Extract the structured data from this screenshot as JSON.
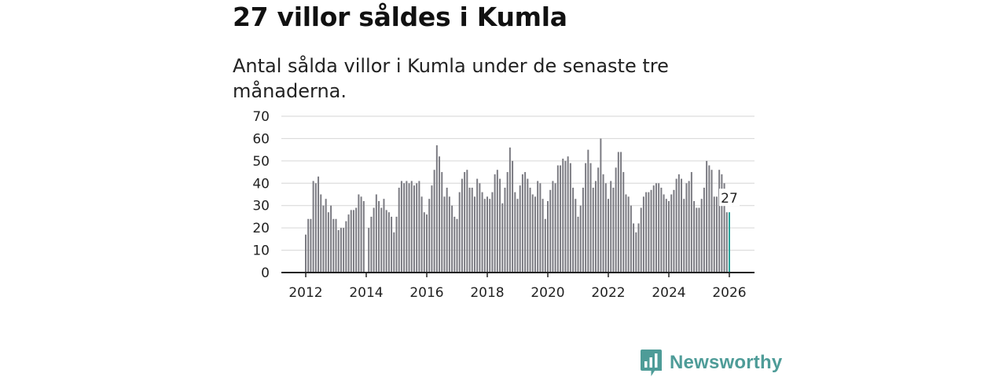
{
  "title": "27 villor såldes i Kumla",
  "subtitle": "Antal sålda villor i Kumla under de senaste tre månaderna.",
  "brand": {
    "name": "Newsworthy",
    "color": "#4e9c98"
  },
  "chart_data": {
    "type": "bar",
    "title": "Antal sålda villor i Kumla under de senaste tre månaderna.",
    "xlabel": "",
    "ylabel": "",
    "ylim": [
      0,
      70
    ],
    "yticks": [
      0,
      10,
      20,
      30,
      40,
      50,
      60,
      70
    ],
    "xticks": [
      2012,
      2014,
      2016,
      2018,
      2020,
      2022,
      2024,
      2026
    ],
    "grid": true,
    "bar_color": "#7b7b82",
    "highlight_color": "#2aa39b",
    "annotation": {
      "label": "27",
      "index": "last"
    },
    "start": {
      "year": 2012,
      "month": 1
    },
    "values": [
      17,
      24,
      24,
      41,
      40,
      43,
      35,
      30,
      33,
      27,
      30,
      24,
      24,
      19,
      20,
      20,
      23,
      26,
      28,
      28,
      29,
      35,
      34,
      32,
      0,
      20,
      25,
      29,
      35,
      32,
      29,
      33,
      28,
      27,
      25,
      18,
      25,
      38,
      41,
      40,
      41,
      40,
      41,
      39,
      40,
      41,
      34,
      27,
      26,
      33,
      39,
      46,
      57,
      52,
      45,
      34,
      38,
      34,
      30,
      25,
      24,
      36,
      42,
      45,
      46,
      38,
      38,
      34,
      42,
      40,
      36,
      33,
      34,
      33,
      36,
      44,
      46,
      42,
      31,
      38,
      45,
      56,
      50,
      36,
      33,
      39,
      44,
      45,
      42,
      38,
      35,
      34,
      41,
      40,
      33,
      24,
      32,
      37,
      41,
      40,
      48,
      48,
      51,
      50,
      52,
      49,
      38,
      33,
      25,
      30,
      38,
      49,
      55,
      49,
      38,
      41,
      47,
      60,
      44,
      40,
      33,
      41,
      38,
      47,
      54,
      54,
      45,
      35,
      34,
      30,
      22,
      18,
      22,
      29,
      34,
      36,
      36,
      37,
      39,
      40,
      40,
      38,
      35,
      33,
      32,
      35,
      37,
      42,
      44,
      42,
      33,
      40,
      41,
      45,
      32,
      29,
      29,
      33,
      38,
      50,
      48,
      46,
      34,
      34,
      46,
      44,
      40,
      27,
      27
    ]
  }
}
